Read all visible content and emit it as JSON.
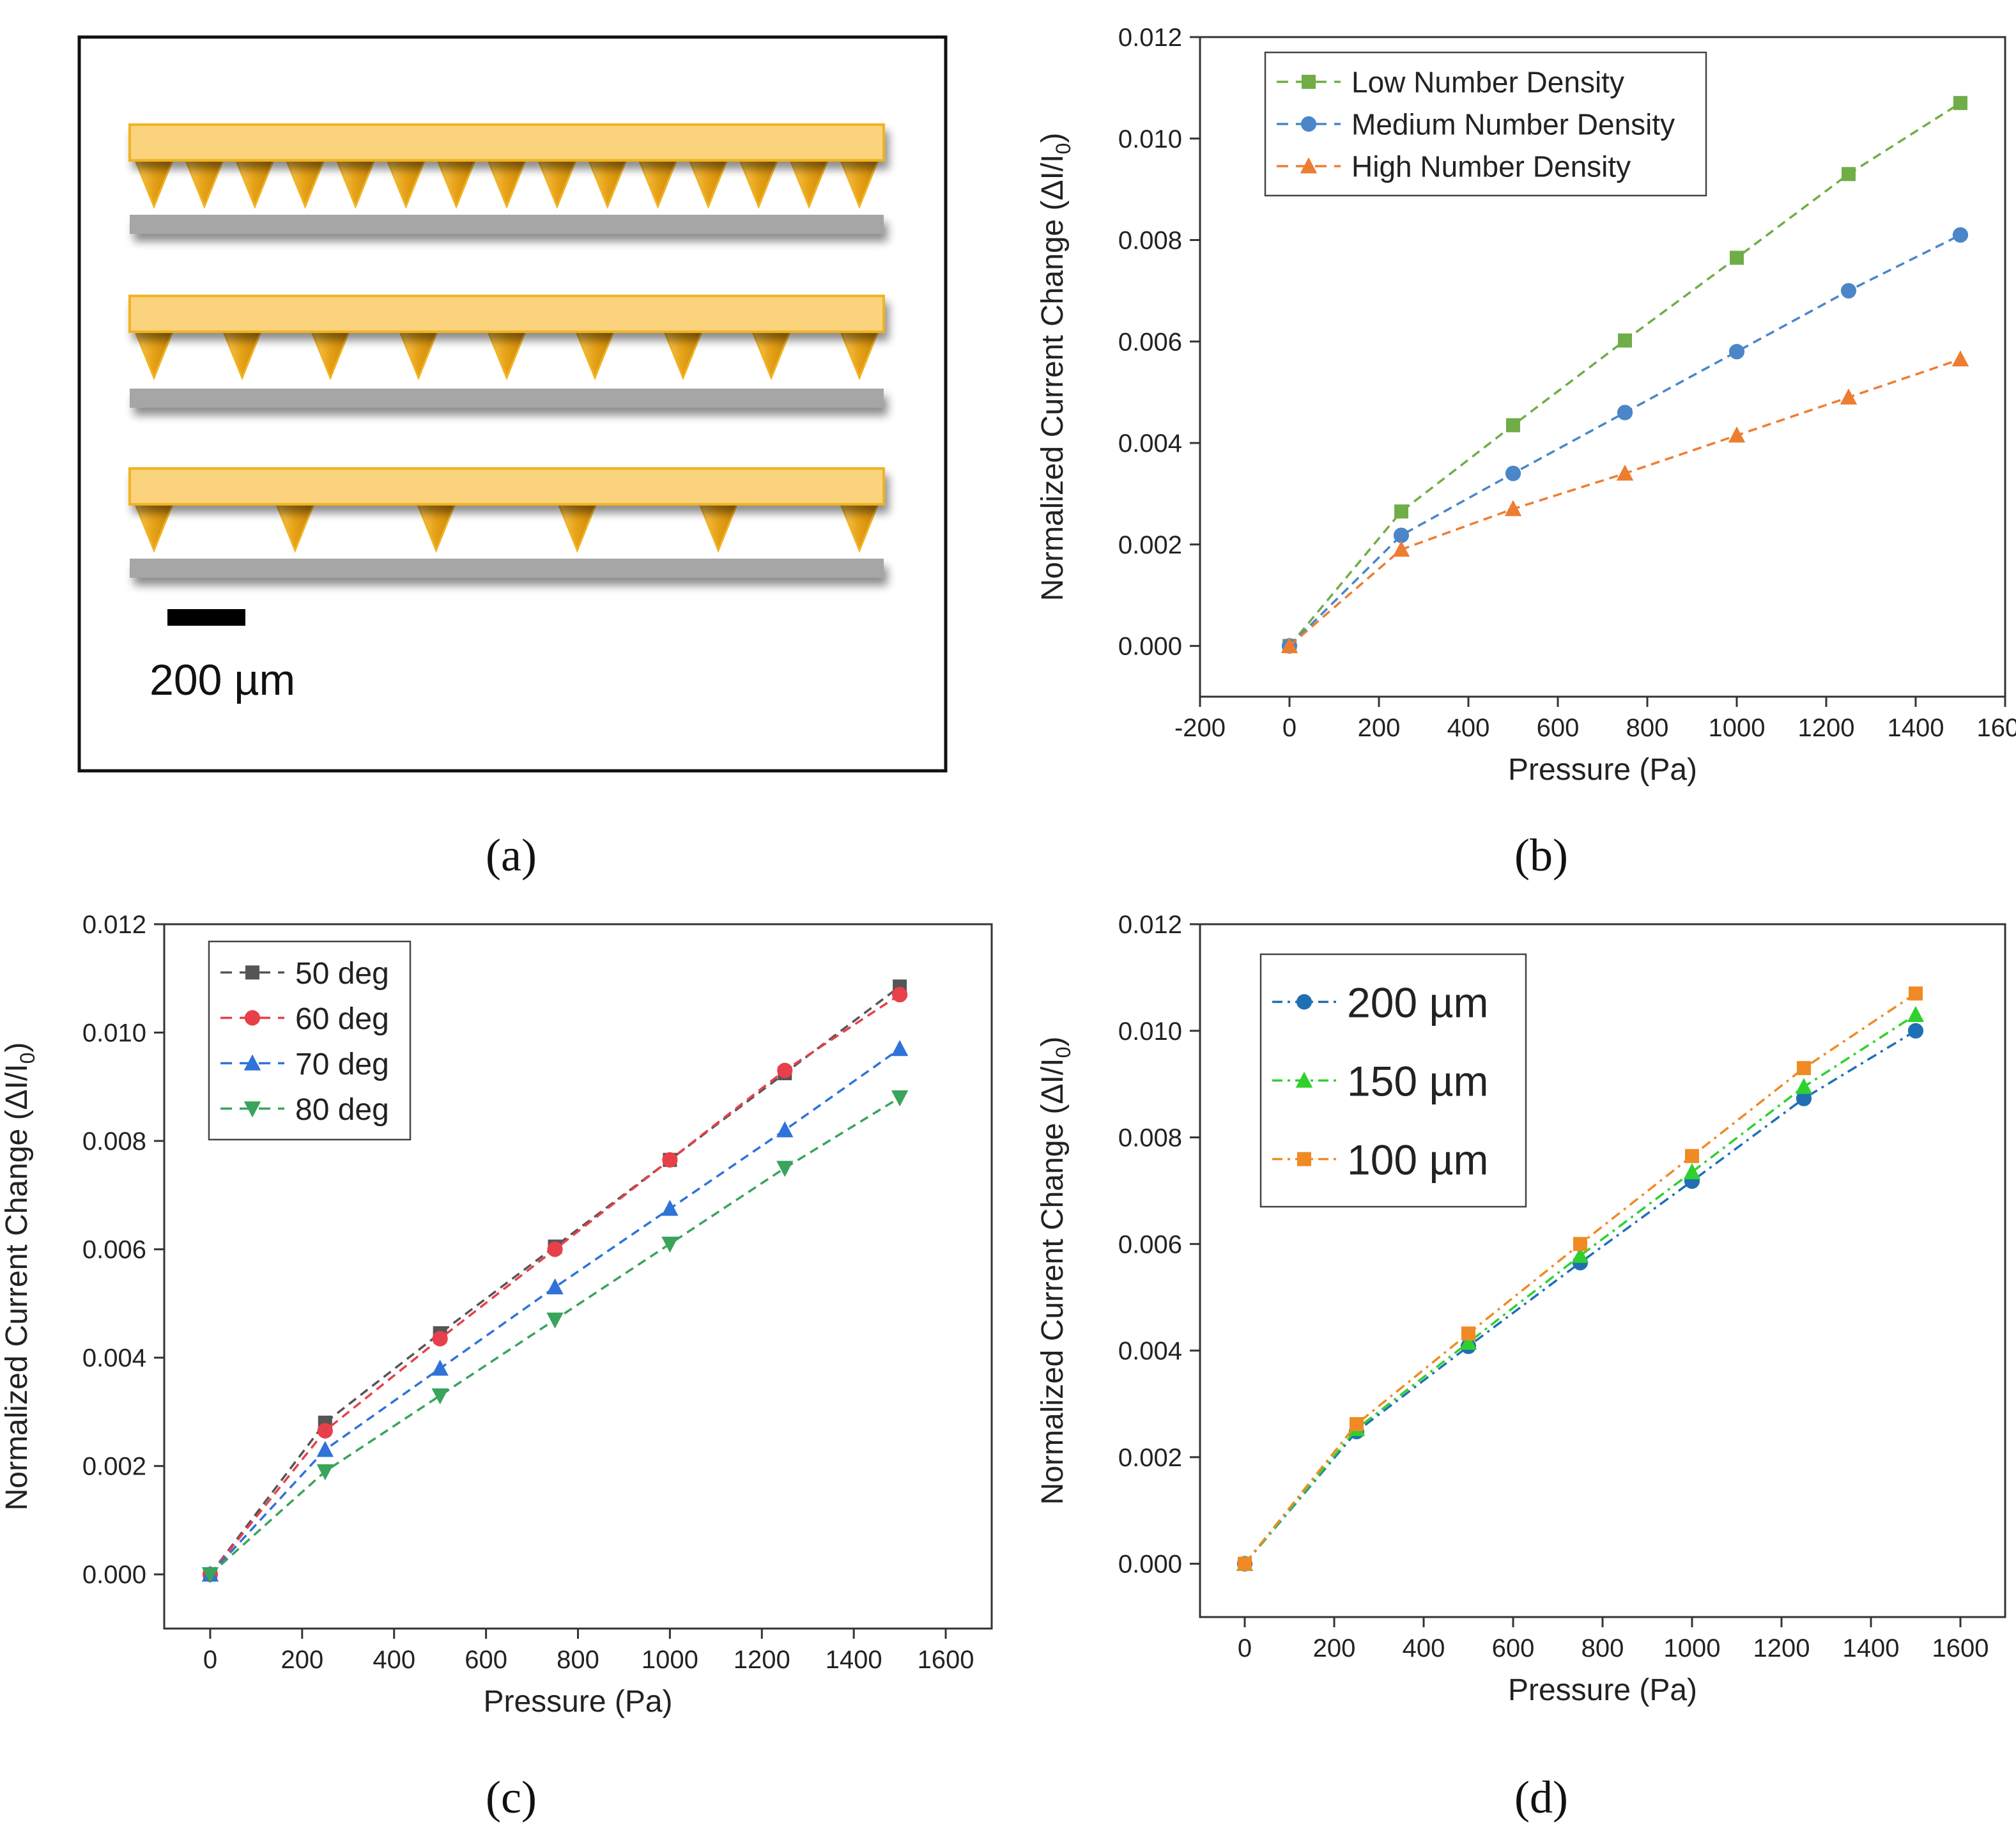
{
  "panel_labels": {
    "a": "(a)",
    "b": "(b)",
    "c": "(c)",
    "d": "(d)"
  },
  "schematic": {
    "scale_bar_label": "200 µm",
    "rows": [
      {
        "name": "high-density",
        "cone_count": 15
      },
      {
        "name": "medium-density",
        "cone_count": 9
      },
      {
        "name": "low-density",
        "cone_count": 6
      }
    ],
    "colors": {
      "bar": "#fbd37d",
      "bar_border": "#f0b323",
      "cone": "#e8a318",
      "base": "#a6a6a6"
    }
  },
  "chart_data": [
    {
      "id": "b",
      "type": "line",
      "xlabel": "Pressure (Pa)",
      "ylabel": "Normalized Current Change (ΔI/I",
      "ylabel_sub": "0",
      "ylabel_tail": ")",
      "xlim": [
        -200,
        1600
      ],
      "ylim": [
        -0.001,
        0.012
      ],
      "xticks": [
        "-200",
        "0",
        "200",
        "400",
        "600",
        "800",
        "1000",
        "1200",
        "1400",
        "1600"
      ],
      "yticks": [
        "0.000",
        "0.002",
        "0.004",
        "0.006",
        "0.008",
        "0.010",
        "0.012"
      ],
      "x": [
        0,
        250,
        500,
        750,
        1000,
        1250,
        1500
      ],
      "series": [
        {
          "name": "Low Number Density",
          "color": "#70ad47",
          "marker": "square",
          "values": [
            0,
            0.00265,
            0.00435,
            0.00602,
            0.00765,
            0.0093,
            0.0107
          ]
        },
        {
          "name": "Medium Number Density",
          "color": "#4a86c8",
          "marker": "circle",
          "values": [
            0,
            0.00218,
            0.0034,
            0.0046,
            0.0058,
            0.007,
            0.0081
          ]
        },
        {
          "name": "High Number Density",
          "color": "#ed7d31",
          "marker": "triangle",
          "values": [
            0,
            0.0019,
            0.0027,
            0.0034,
            0.00415,
            0.0049,
            0.00565
          ]
        }
      ]
    },
    {
      "id": "c",
      "type": "line",
      "xlabel": "Pressure (Pa)",
      "ylabel": "Normalized Current Change (ΔI/I",
      "ylabel_sub": "0",
      "ylabel_tail": ")",
      "xlim": [
        -100,
        1700
      ],
      "ylim": [
        -0.001,
        0.012
      ],
      "xticks": [
        "0",
        "200",
        "400",
        "600",
        "800",
        "1000",
        "1200",
        "1400",
        "1600"
      ],
      "yticks": [
        "0.000",
        "0.002",
        "0.004",
        "0.006",
        "0.008",
        "0.010",
        "0.012"
      ],
      "x": [
        0,
        250,
        500,
        750,
        1000,
        1250,
        1500
      ],
      "series": [
        {
          "name": "50 deg",
          "color": "#555555",
          "marker": "square",
          "values": [
            0,
            0.0028,
            0.00445,
            0.00605,
            0.00765,
            0.00925,
            0.01085
          ]
        },
        {
          "name": "60 deg",
          "color": "#e8404a",
          "marker": "circle",
          "values": [
            0,
            0.00265,
            0.00435,
            0.006,
            0.00765,
            0.0093,
            0.0107
          ]
        },
        {
          "name": "70 deg",
          "color": "#2f73d8",
          "marker": "triangle",
          "values": [
            0,
            0.0023,
            0.0038,
            0.0053,
            0.00675,
            0.0082,
            0.0097
          ]
        },
        {
          "name": "80 deg",
          "color": "#3aa35c",
          "marker": "triangle-down",
          "values": [
            0,
            0.0019,
            0.0033,
            0.0047,
            0.0061,
            0.0075,
            0.0088
          ]
        }
      ]
    },
    {
      "id": "d",
      "type": "line",
      "xlabel": "Pressure (Pa)",
      "ylabel": "Normalized Current Change (ΔI/I",
      "ylabel_sub": "0",
      "ylabel_tail": ")",
      "xlim": [
        -100,
        1700
      ],
      "ylim": [
        -0.001,
        0.012
      ],
      "xticks": [
        "0",
        "200",
        "400",
        "600",
        "800",
        "1000",
        "1200",
        "1400",
        "1600"
      ],
      "yticks": [
        "0.000",
        "0.002",
        "0.004",
        "0.006",
        "0.008",
        "0.010",
        "0.012"
      ],
      "x": [
        0,
        250,
        500,
        750,
        1000,
        1250,
        1500
      ],
      "series": [
        {
          "name": "200 µm",
          "color": "#1f6fb5",
          "marker": "circle",
          "values": [
            0,
            0.00248,
            0.00408,
            0.00565,
            0.00718,
            0.00873,
            0.01
          ]
        },
        {
          "name": "150 µm",
          "color": "#2ed12e",
          "marker": "triangle",
          "values": [
            0,
            0.00253,
            0.00415,
            0.00578,
            0.00735,
            0.00895,
            0.0103
          ]
        },
        {
          "name": "100 µm",
          "color": "#f08a24",
          "marker": "square",
          "values": [
            0,
            0.00262,
            0.00432,
            0.006,
            0.00765,
            0.0093,
            0.0107
          ]
        }
      ]
    }
  ]
}
